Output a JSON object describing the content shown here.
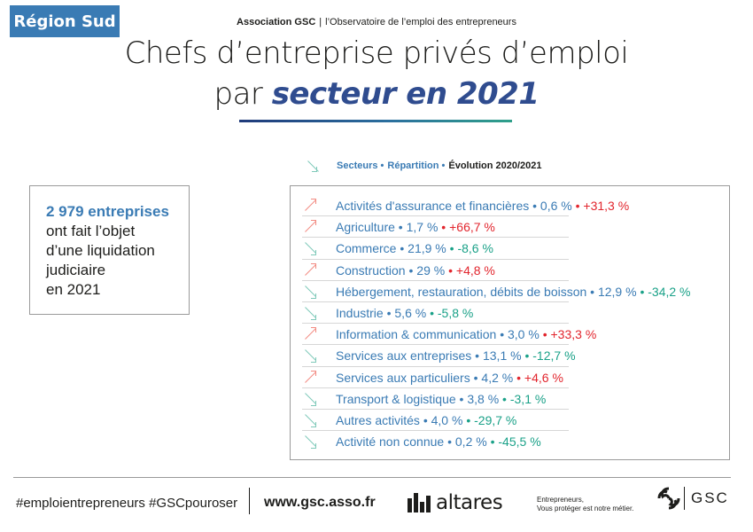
{
  "header": {
    "region_badge": "Région Sud",
    "association": "Association GSC",
    "separator": "|",
    "observatory": "l’Observatoire de l’emploi des entrepreneurs",
    "title_line1": "Chefs d’entreprise privés d’emploi",
    "title_line2_prefix": "par ",
    "title_line2_emphasis": "secteur en 2021"
  },
  "legend": {
    "item1": "Secteurs •",
    "item2": "Répartition •",
    "item3": "Évolution 2020/2021"
  },
  "callout": {
    "number": "2 979 entreprises",
    "line1": "ont fait l’objet",
    "line2": "d’une liquidation",
    "line3": "judiciaire",
    "line4": "en 2021"
  },
  "sectors": [
    {
      "name": "Activités d'assurance et financières",
      "share": "0,6 %",
      "change": "+31,3 %",
      "trend": "up"
    },
    {
      "name": "Agriculture",
      "share": "1,7 %",
      "change": "+66,7 %",
      "trend": "up"
    },
    {
      "name": "Commerce",
      "share": "21,9 %",
      "change": "-8,6 %",
      "trend": "down"
    },
    {
      "name": "Construction",
      "share": "29 %",
      "change": "+4,8 %",
      "trend": "up"
    },
    {
      "name": "Hébergement, restauration, débits de boisson",
      "share": "12,9 %",
      "change": "-34,2 %",
      "trend": "down"
    },
    {
      "name": "Industrie",
      "share": "5,6 %",
      "change": "-5,8 %",
      "trend": "down"
    },
    {
      "name": "Information & communication",
      "share": "3,0 %",
      "change": "+33,3 %",
      "trend": "up"
    },
    {
      "name": "Services aux entreprises",
      "share": "13,1 %",
      "change": "-12,7 %",
      "trend": "down"
    },
    {
      "name": "Services aux particuliers",
      "share": "4,2 %",
      "change": "+4,6 %",
      "trend": "up"
    },
    {
      "name": "Transport & logistique",
      "share": "3,8 %",
      "change": "-3,1 %",
      "trend": "down"
    },
    {
      "name": "Autres activités",
      "share": "4,0 %",
      "change": "-29,7 %",
      "trend": "down"
    },
    {
      "name": "Activité non connue",
      "share": "0,2 %",
      "change": "-45,5 %",
      "trend": "down"
    }
  ],
  "colors": {
    "accent_blue": "#3a7bb4",
    "increase_red": "#e2252d",
    "decrease_green": "#1aa188"
  },
  "footer": {
    "hashtags": "#emploientrepreneurs #GSCpouroser",
    "website": "www.gsc.asso.fr",
    "partner_logo": "altares",
    "tagline_line1": "Entrepreneurs,",
    "tagline_line2": "Vous protéger est notre métier.",
    "logo": "GSC"
  }
}
